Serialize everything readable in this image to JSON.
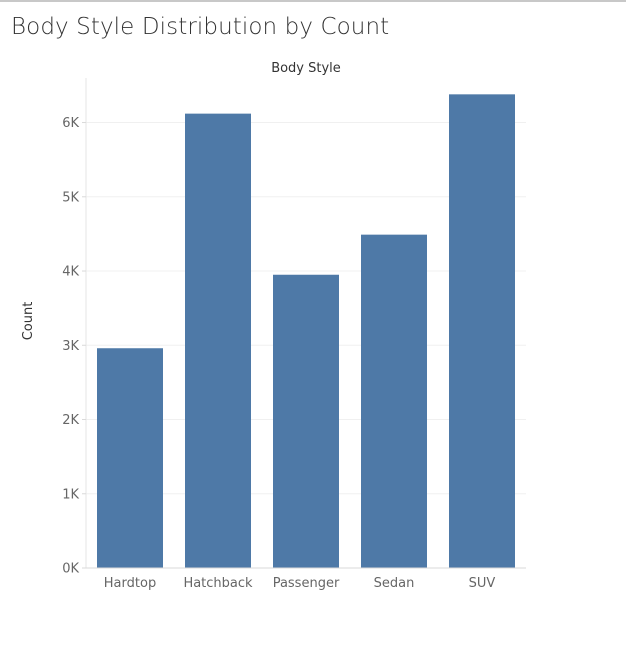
{
  "title": "Body Style Distribution by Count",
  "chart_data": {
    "type": "bar",
    "categories": [
      "Hardtop",
      "Hatchback",
      "Passenger",
      "Sedan",
      "SUV"
    ],
    "values": [
      2960,
      6120,
      3950,
      4490,
      6380
    ],
    "xlabel": "Body Style",
    "ylabel": "Count",
    "ylim": [
      0,
      6600
    ],
    "yticks": [
      0,
      1000,
      2000,
      3000,
      4000,
      5000,
      6000
    ],
    "ytick_labels": [
      "0K",
      "1K",
      "2K",
      "3K",
      "4K",
      "5K",
      "6K"
    ],
    "bar_color": "#4e79a7",
    "grid": true,
    "legend": "none"
  }
}
